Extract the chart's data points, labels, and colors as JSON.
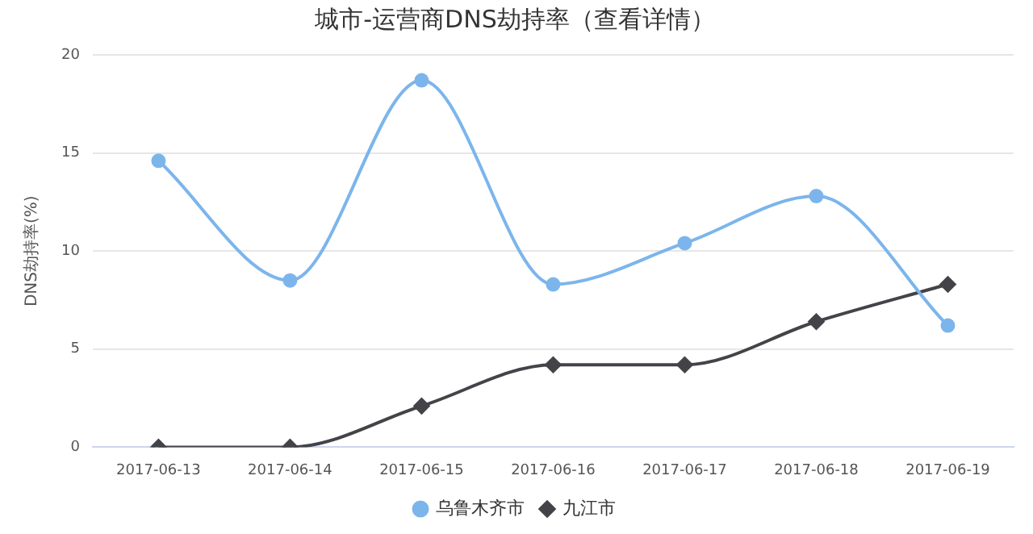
{
  "chart_data": {
    "type": "line",
    "title": "城市-运营商DNS劫持率（查看详情）",
    "ylabel": "DNS劫持率(%)",
    "categories": [
      "2017-06-13",
      "2017-06-14",
      "2017-06-15",
      "2017-06-16",
      "2017-06-17",
      "2017-06-18",
      "2017-06-19"
    ],
    "series": [
      {
        "name": "乌鲁木齐市",
        "color": "#7cb5ec",
        "marker": "circle",
        "values": [
          14.6,
          8.5,
          18.7,
          8.3,
          10.4,
          12.8,
          6.2
        ]
      },
      {
        "name": "九江市",
        "color": "#434348",
        "marker": "diamond",
        "values": [
          0,
          0,
          2.1,
          4.2,
          4.2,
          6.4,
          8.3
        ]
      }
    ],
    "ylim": [
      0,
      20
    ],
    "yticks": [
      0,
      5,
      10,
      15,
      20
    ],
    "grid": "y",
    "legend": "bottom"
  }
}
